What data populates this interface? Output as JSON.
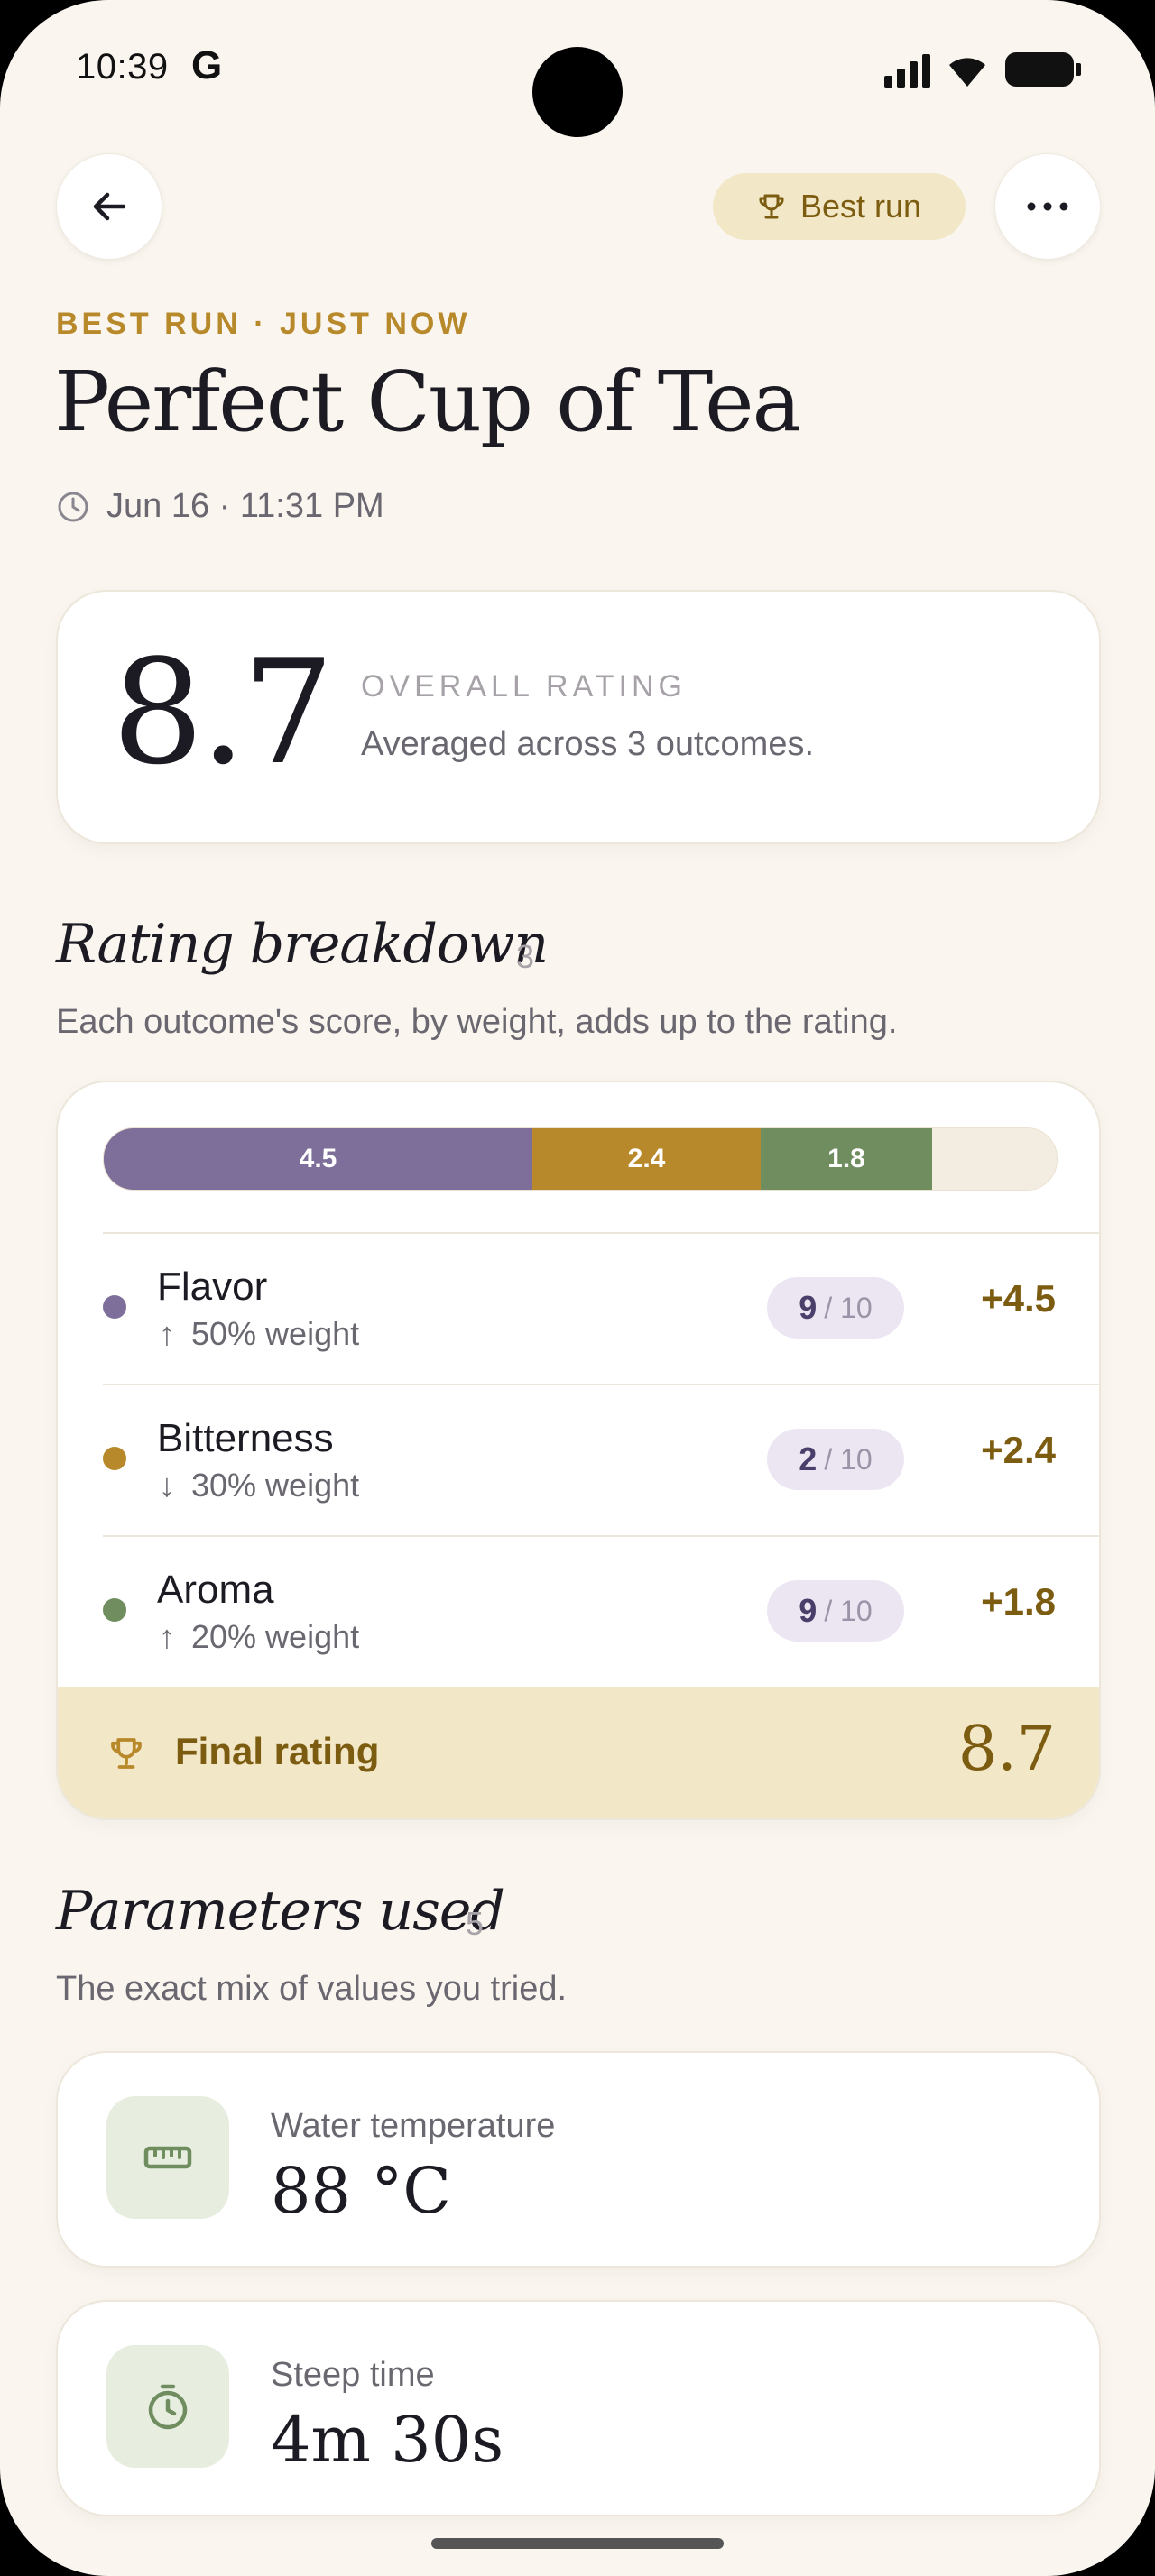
{
  "status_bar": {
    "time": "10:39",
    "app_badge": "G"
  },
  "header": {
    "best_run_label": "Best run"
  },
  "overline": "BEST RUN · JUST NOW",
  "title": "Perfect Cup of Tea",
  "datetime": "Jun 16 · 11:31 PM",
  "overall": {
    "value": "8.7",
    "label": "OVERALL RATING",
    "subtitle": "Averaged across 3 outcomes."
  },
  "breakdown": {
    "title": "Rating breakdown",
    "count": "3",
    "subtitle": "Each outcome's score, by weight, adds up to the rating.",
    "bar": [
      {
        "label": "4.5",
        "color": "#7d6f99",
        "fraction": 0.45
      },
      {
        "label": "2.4",
        "color": "#b8892a",
        "fraction": 0.24
      },
      {
        "label": "1.8",
        "color": "#6f8d5f",
        "fraction": 0.18
      }
    ],
    "items": [
      {
        "name": "Flavor",
        "direction": "↑",
        "weight": "50% weight",
        "score": "9",
        "max": "/ 10",
        "contribution": "+4.5",
        "color": "#7d6f99"
      },
      {
        "name": "Bitterness",
        "direction": "↓",
        "weight": "30% weight",
        "score": "2",
        "max": "/ 10",
        "contribution": "+2.4",
        "color": "#b8892a"
      },
      {
        "name": "Aroma",
        "direction": "↑",
        "weight": "20% weight",
        "score": "9",
        "max": "/ 10",
        "contribution": "+1.8",
        "color": "#6f8d5f"
      }
    ],
    "final_label": "Final rating",
    "final_value": "8.7"
  },
  "parameters": {
    "title": "Parameters used",
    "count": "5",
    "subtitle": "The exact mix of values you tried.",
    "items": [
      {
        "label": "Water temperature",
        "value": "88 °C",
        "icon": "ruler-icon"
      },
      {
        "label": "Steep time",
        "value": "4m 30s",
        "icon": "timer-icon"
      }
    ]
  }
}
